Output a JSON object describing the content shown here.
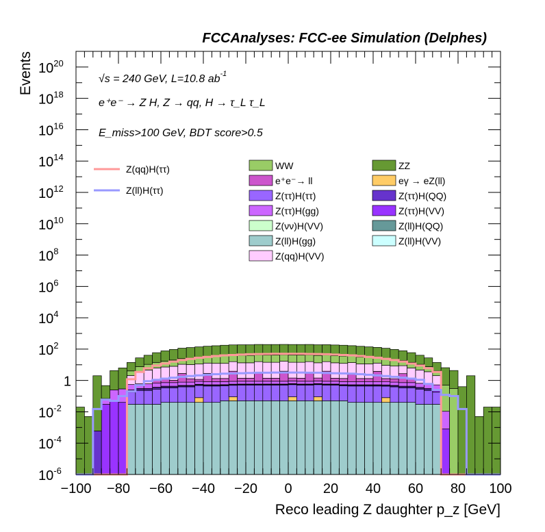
{
  "header": "FCCAnalyses: FCC-ee Simulation (Delphes)",
  "annotations": {
    "energy_prefix": "√s = 240 GeV, L=10.8 ab",
    "energy_exp": "-1",
    "process": "e⁺e⁻ → Z H, Z → qq, H → τ_L τ_L",
    "selection": "E_miss>100 GeV, BDT score>0.5"
  },
  "chart_data": {
    "type": "histogram",
    "title": "FCCAnalyses: FCC-ee Simulation (Delphes)",
    "xlabel": "Reco leading Z daughter p_z [GeV]",
    "ylabel": "Events",
    "xlim": [
      -100,
      100
    ],
    "ylim": [
      1e-06,
      1e+21
    ],
    "log_y": true,
    "grid": false,
    "legend_placement": "top",
    "x_ticks": [
      "−100",
      "−80",
      "−60",
      "−40",
      "−20",
      "0",
      "20",
      "40",
      "60",
      "80",
      "100"
    ],
    "y_ticks": [
      {
        "base": "10",
        "exp": "20"
      },
      {
        "base": "10",
        "exp": "18"
      },
      {
        "base": "10",
        "exp": "16"
      },
      {
        "base": "10",
        "exp": "14"
      },
      {
        "base": "10",
        "exp": "12"
      },
      {
        "base": "10",
        "exp": "10"
      },
      {
        "base": "10",
        "exp": "8"
      },
      {
        "base": "10",
        "exp": "6"
      },
      {
        "base": "10",
        "exp": "4"
      },
      {
        "base": "10",
        "exp": "2"
      },
      {
        "base": "1",
        "exp": ""
      },
      {
        "base": "10",
        "exp": "-2"
      },
      {
        "base": "10",
        "exp": "-4"
      },
      {
        "base": "10",
        "exp": "-6"
      }
    ],
    "bin_width": 4,
    "bin_centers": [
      -98,
      -94,
      -90,
      -86,
      -82,
      -78,
      -74,
      -70,
      -66,
      -62,
      -58,
      -54,
      -50,
      -46,
      -42,
      -38,
      -34,
      -30,
      -26,
      -22,
      -18,
      -14,
      -10,
      -6,
      -2,
      2,
      6,
      10,
      14,
      18,
      22,
      26,
      30,
      34,
      38,
      42,
      46,
      50,
      54,
      58,
      62,
      66,
      70,
      74,
      78,
      82,
      86,
      90,
      94,
      98
    ],
    "stack_layers": [
      {
        "name": "Z(ll)H(gg)",
        "color": "#9ecccc",
        "values": [
          0,
          0,
          0,
          0,
          0,
          0,
          0.03,
          0.03,
          0.03,
          0.03,
          0.04,
          0.04,
          0.04,
          0.04,
          0.04,
          0.04,
          0.04,
          0.05,
          0.05,
          0.05,
          0.05,
          0.05,
          0.05,
          0.05,
          0.05,
          0.05,
          0.05,
          0.05,
          0.05,
          0.05,
          0.05,
          0.05,
          0.04,
          0.04,
          0.04,
          0.04,
          0.04,
          0.04,
          0.04,
          0.04,
          0.03,
          0.03,
          0.03,
          0,
          0,
          0,
          0,
          0,
          0,
          0
        ]
      },
      {
        "name": "eγ → eZ(ll)",
        "color": "#ffcc66",
        "values": [
          0,
          0,
          0,
          0,
          0,
          0,
          0,
          0,
          0,
          0,
          0,
          0,
          0,
          0,
          0.04,
          0,
          0,
          0,
          0.04,
          0,
          0,
          0,
          0,
          0,
          0,
          0.04,
          0,
          0,
          0.04,
          0,
          0,
          0,
          0,
          0,
          0,
          0,
          0.04,
          0,
          0,
          0,
          0,
          0,
          0,
          0,
          0,
          0,
          0,
          0,
          0,
          0
        ]
      },
      {
        "name": "Z(ττ)H(ττ)",
        "color": "#9966ff",
        "values": [
          0,
          0,
          0,
          0,
          0,
          0,
          0.15,
          0.2,
          0.2,
          0.25,
          0.3,
          0.3,
          0.35,
          0.35,
          0.4,
          0.4,
          0.4,
          0.4,
          0.4,
          0.45,
          0.45,
          0.45,
          0.45,
          0.45,
          0.45,
          0.45,
          0.45,
          0.45,
          0.45,
          0.45,
          0.45,
          0.4,
          0.4,
          0.4,
          0.4,
          0.4,
          0.35,
          0.35,
          0.3,
          0.3,
          0.25,
          0.2,
          0.15,
          0,
          0,
          0,
          0,
          0,
          0,
          0
        ]
      },
      {
        "name": "Z(ττ)H(QQ)",
        "color": "#6633cc",
        "values": [
          0,
          0,
          0.0006,
          0,
          0,
          0,
          0.03,
          0.04,
          0.04,
          0.05,
          0.05,
          0.05,
          0.05,
          0.05,
          0.05,
          0.05,
          0.05,
          0.05,
          0.05,
          0.05,
          0.05,
          0.05,
          0.05,
          0.05,
          0.05,
          0.05,
          0.05,
          0.05,
          0.05,
          0.05,
          0.05,
          0.05,
          0.05,
          0.05,
          0.05,
          0.05,
          0.05,
          0.05,
          0.05,
          0.05,
          0.04,
          0.04,
          0.0004,
          0,
          0,
          0,
          0,
          0,
          0,
          0
        ]
      },
      {
        "name": "Z(ττ)H(VV)",
        "color": "#9933ff",
        "values": [
          0,
          0,
          0,
          0.03,
          0.05,
          0.04,
          0.04,
          0.04,
          0.04,
          0.04,
          0.04,
          0.04,
          0.04,
          0.04,
          0.04,
          0.04,
          0.04,
          0.04,
          0.04,
          0.04,
          0.04,
          0.04,
          0.04,
          0.04,
          0.04,
          0.04,
          0.04,
          0.04,
          0.04,
          0.04,
          0.04,
          0.04,
          0.04,
          0.04,
          0.04,
          0.04,
          0.04,
          0.04,
          0.04,
          0.04,
          0.04,
          0.04,
          0.04,
          0.0008,
          0,
          0,
          0,
          0,
          0,
          0
        ]
      },
      {
        "name": "Z(ττ)H(gg)",
        "color": "#cc66ff",
        "values": [
          0,
          0,
          0,
          0.04,
          0.2,
          0.25,
          0.3,
          0.3,
          0.3,
          0.3,
          0.3,
          0.3,
          0.3,
          0.3,
          0.3,
          0.3,
          0.3,
          0.3,
          0.3,
          0.3,
          0.3,
          0.3,
          0.3,
          0.3,
          0.3,
          0.3,
          0.3,
          0.3,
          0.3,
          0.3,
          0.3,
          0.3,
          0.3,
          0.3,
          0.3,
          0.3,
          0.3,
          0.3,
          0.3,
          0.3,
          0.3,
          0.3,
          0.3,
          0.01,
          0,
          0,
          0,
          0,
          0,
          0
        ]
      },
      {
        "name": "e⁺e⁻→ ll",
        "color": "#cc55cc",
        "values": [
          0,
          0,
          0,
          0,
          0,
          0,
          0,
          0,
          0,
          0.5,
          0.5,
          0.3,
          2,
          0.5,
          0.3,
          2,
          0.5,
          0.5,
          3,
          0.5,
          0.5,
          2,
          0.5,
          0.5,
          3,
          0.5,
          0.5,
          2,
          0.5,
          3,
          0.5,
          0.5,
          2,
          0.5,
          0.5,
          3,
          0.5,
          0.5,
          2,
          0.5,
          0,
          0,
          0,
          0,
          0,
          0,
          0,
          0,
          0,
          0
        ]
      },
      {
        "name": "Z(qq)H(VV)",
        "color": "#ffccff",
        "values": [
          0,
          0,
          0,
          0,
          0,
          0,
          1.5,
          3,
          4,
          5,
          6,
          7,
          8,
          9,
          10,
          10,
          11,
          11,
          12,
          12,
          12,
          13,
          13,
          13,
          13,
          13,
          13,
          13,
          12,
          12,
          12,
          11,
          11,
          10,
          10,
          9,
          8,
          7,
          6,
          5,
          4,
          3,
          1.5,
          0,
          0,
          0,
          0,
          0,
          0,
          0
        ]
      },
      {
        "name": "WW",
        "color": "#99cc66",
        "values": [
          0,
          0,
          0,
          0,
          0,
          0,
          2,
          4,
          6,
          8,
          10,
          12,
          14,
          16,
          18,
          20,
          22,
          24,
          25,
          26,
          26,
          27,
          27,
          27,
          27,
          27,
          27,
          27,
          26,
          26,
          25,
          24,
          22,
          20,
          18,
          16,
          14,
          12,
          10,
          8,
          6,
          4,
          2,
          0.5,
          0.3,
          0,
          0,
          0,
          0,
          0
        ]
      },
      {
        "name": "ZZ",
        "color": "#669933",
        "values": [
          0.02,
          0.005,
          2,
          0.4,
          4,
          6,
          10,
          20,
          30,
          45,
          60,
          75,
          90,
          100,
          110,
          120,
          130,
          140,
          145,
          150,
          150,
          155,
          155,
          155,
          155,
          155,
          155,
          155,
          150,
          150,
          145,
          140,
          130,
          120,
          110,
          100,
          90,
          75,
          60,
          45,
          30,
          20,
          10,
          6,
          4,
          0.4,
          2,
          0.005,
          0.02,
          0.02
        ]
      }
    ],
    "line_series": [
      {
        "name": "Z(qq)H(ττ)",
        "color": "#ff9999",
        "values": [
          0,
          0,
          0,
          0,
          0,
          0,
          1.2,
          3.5,
          6,
          9,
          12,
          16,
          20,
          24,
          28,
          32,
          36,
          40,
          42,
          45,
          47,
          48,
          49,
          50,
          50,
          50,
          50,
          49,
          48,
          47,
          45,
          42,
          40,
          36,
          32,
          28,
          24,
          20,
          16,
          12,
          9,
          6,
          3.5,
          1e-06,
          0,
          0,
          0,
          0,
          0,
          0
        ]
      },
      {
        "name": "Z(ll)H(ττ)",
        "color": "#9999ff",
        "values": [
          0,
          0,
          0.015,
          0.06,
          0.05,
          0.1,
          0.2,
          0.5,
          0.9,
          1.1,
          1.3,
          1.5,
          1.7,
          1.9,
          2.1,
          2.3,
          2.5,
          2.7,
          2.8,
          2.9,
          3.0,
          3.1,
          3.1,
          3.2,
          3.2,
          3.2,
          3.2,
          3.1,
          3.1,
          3.0,
          2.9,
          2.8,
          2.7,
          2.5,
          2.3,
          2.1,
          1.9,
          1.7,
          1.5,
          1.3,
          1.1,
          0.6,
          0.25,
          0.12,
          0.1,
          0.015,
          1e-06,
          0,
          0,
          0
        ]
      }
    ],
    "legend_left": [
      {
        "name": "Z(qq)H(ττ)",
        "color": "#ff9999"
      },
      {
        "name": "Z(ll)H(ττ)",
        "color": "#9999ff"
      }
    ],
    "legend_grid": [
      {
        "name": "WW",
        "color": "#99cc66"
      },
      {
        "name": "ZZ",
        "color": "#669933"
      },
      {
        "name": "e⁺e⁻→ ll",
        "color": "#cc55cc"
      },
      {
        "name": "eγ → eZ(ll)",
        "color": "#ffcc66"
      },
      {
        "name": "Z(ττ)H(ττ)",
        "color": "#9966ff"
      },
      {
        "name": "Z(ττ)H(QQ)",
        "color": "#6633cc"
      },
      {
        "name": "Z(ττ)H(gg)",
        "color": "#cc66ff"
      },
      {
        "name": "Z(ττ)H(VV)",
        "color": "#9933ff"
      },
      {
        "name": "Z(νν)H(VV)",
        "color": "#ccffcc"
      },
      {
        "name": "Z(ll)H(QQ)",
        "color": "#669999"
      },
      {
        "name": "Z(ll)H(gg)",
        "color": "#9ecccc"
      },
      {
        "name": "Z(ll)H(VV)",
        "color": "#ccffff"
      },
      {
        "name": "Z(qq)H(VV)",
        "color": "#ffccff"
      }
    ]
  }
}
